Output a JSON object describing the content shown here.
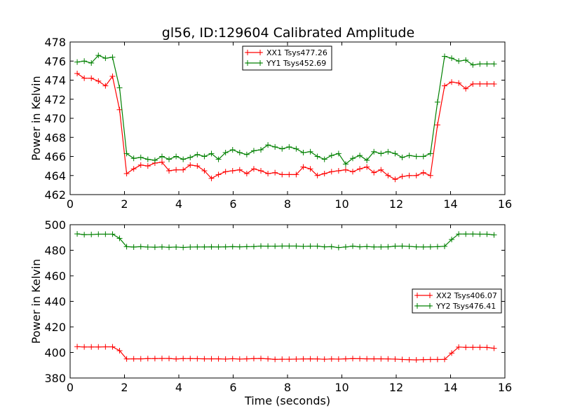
{
  "title": "gl56, ID:129604 Calibrated Amplitude",
  "chart_data": [
    {
      "type": "line",
      "ylabel": "Power in Kelvin",
      "xlabel": "",
      "xlim": [
        0,
        16
      ],
      "ylim": [
        462,
        478
      ],
      "xticks": [
        "0",
        "2",
        "4",
        "6",
        "8",
        "10",
        "12",
        "14",
        "16"
      ],
      "yticks": [
        "462",
        "464",
        "466",
        "468",
        "470",
        "472",
        "474",
        "476",
        "478"
      ],
      "grid": false,
      "legend_position": "top-center",
      "x": [
        0.26,
        0.52,
        0.78,
        1.04,
        1.3,
        1.56,
        1.82,
        2.08,
        2.34,
        2.6,
        2.86,
        3.12,
        3.38,
        3.64,
        3.9,
        4.16,
        4.42,
        4.68,
        4.94,
        5.2,
        5.46,
        5.72,
        5.98,
        6.24,
        6.5,
        6.76,
        7.02,
        7.28,
        7.54,
        7.8,
        8.06,
        8.32,
        8.58,
        8.84,
        9.1,
        9.36,
        9.62,
        9.88,
        10.14,
        10.4,
        10.66,
        10.92,
        11.18,
        11.44,
        11.7,
        11.96,
        12.22,
        12.48,
        12.74,
        13.0,
        13.26,
        13.52,
        13.78,
        14.04,
        14.3,
        14.56,
        14.82,
        15.08,
        15.34,
        15.6
      ],
      "series": [
        {
          "name": "XX1 Tsys477.26",
          "color": "#ff0000",
          "values": [
            474.7,
            474.2,
            474.2,
            473.9,
            473.4,
            474.4,
            470.9,
            464.2,
            464.7,
            465.1,
            465.0,
            465.3,
            465.4,
            464.5,
            464.6,
            464.6,
            465.1,
            465.0,
            464.5,
            463.7,
            464.1,
            464.4,
            464.5,
            464.6,
            464.2,
            464.7,
            464.5,
            464.2,
            464.3,
            464.1,
            464.1,
            464.1,
            464.9,
            464.7,
            464.0,
            464.2,
            464.4,
            464.5,
            464.6,
            464.4,
            464.7,
            464.9,
            464.3,
            464.6,
            464.0,
            463.6,
            463.9,
            464.0,
            464.0,
            464.3,
            464.0,
            469.3,
            473.4,
            473.8,
            473.7,
            473.1,
            473.6,
            473.6,
            473.6,
            473.6
          ]
        },
        {
          "name": "YY1 Tsys452.69",
          "color": "#008000",
          "values": [
            475.9,
            476.0,
            475.8,
            476.6,
            476.3,
            476.4,
            473.2,
            466.3,
            465.8,
            465.9,
            465.7,
            465.6,
            466.0,
            465.7,
            466.0,
            465.7,
            465.9,
            466.2,
            466.0,
            466.3,
            465.7,
            466.4,
            466.7,
            466.4,
            466.2,
            466.6,
            466.7,
            467.2,
            467.0,
            466.8,
            467.0,
            466.8,
            466.4,
            466.5,
            466.0,
            465.7,
            466.1,
            466.3,
            465.2,
            465.8,
            466.1,
            465.6,
            466.5,
            466.3,
            466.5,
            466.3,
            465.9,
            466.1,
            466.0,
            466.0,
            466.3,
            471.7,
            476.5,
            476.3,
            476.0,
            476.1,
            475.6,
            475.7,
            475.7,
            475.7
          ]
        }
      ]
    },
    {
      "type": "line",
      "ylabel": "Power in Kelvin",
      "xlabel": "Time (seconds)",
      "xlim": [
        0,
        16
      ],
      "ylim": [
        380,
        500
      ],
      "xticks": [
        "0",
        "2",
        "4",
        "6",
        "8",
        "10",
        "12",
        "14",
        "16"
      ],
      "yticks": [
        "380",
        "400",
        "420",
        "440",
        "460",
        "480",
        "500"
      ],
      "grid": false,
      "legend_position": "center-right",
      "x": [
        0.26,
        0.52,
        0.78,
        1.04,
        1.3,
        1.56,
        1.82,
        2.08,
        2.34,
        2.6,
        2.86,
        3.12,
        3.38,
        3.64,
        3.9,
        4.16,
        4.42,
        4.68,
        4.94,
        5.2,
        5.46,
        5.72,
        5.98,
        6.24,
        6.5,
        6.76,
        7.02,
        7.28,
        7.54,
        7.8,
        8.06,
        8.32,
        8.58,
        8.84,
        9.1,
        9.36,
        9.62,
        9.88,
        10.14,
        10.4,
        10.66,
        10.92,
        11.18,
        11.44,
        11.7,
        11.96,
        12.22,
        12.48,
        12.74,
        13.0,
        13.26,
        13.52,
        13.78,
        14.04,
        14.3,
        14.56,
        14.82,
        15.08,
        15.34,
        15.6
      ],
      "series": [
        {
          "name": "XX2 Tsys406.07",
          "color": "#ff0000",
          "values": [
            404.5,
            404.3,
            404.3,
            404.3,
            404.4,
            404.4,
            401.4,
            394.9,
            395.0,
            395.0,
            395.2,
            395.2,
            395.3,
            395.3,
            394.9,
            395.2,
            395.2,
            395.1,
            395.0,
            395.0,
            395.0,
            394.8,
            395.1,
            394.8,
            395.0,
            395.2,
            395.3,
            395.0,
            394.6,
            394.7,
            394.7,
            394.8,
            394.9,
            395.0,
            394.9,
            394.7,
            394.9,
            394.8,
            395.0,
            395.2,
            395.1,
            395.0,
            395.0,
            395.0,
            394.9,
            394.8,
            394.5,
            394.3,
            394.2,
            394.4,
            394.5,
            394.5,
            394.6,
            399.5,
            404.2,
            404.0,
            404.0,
            404.0,
            403.9,
            403.3
          ]
        },
        {
          "name": "YY2 Tsys476.41",
          "color": "#008000",
          "values": [
            492.8,
            492.2,
            492.3,
            492.6,
            492.6,
            492.6,
            489.3,
            482.8,
            482.5,
            482.8,
            482.5,
            482.4,
            482.6,
            482.3,
            482.5,
            482.2,
            482.5,
            482.6,
            482.6,
            482.7,
            482.6,
            482.7,
            482.8,
            482.7,
            482.8,
            482.9,
            483.3,
            483.2,
            483.2,
            483.3,
            483.3,
            483.3,
            483.0,
            483.2,
            483.2,
            482.7,
            482.8,
            482.1,
            482.6,
            483.2,
            482.7,
            482.9,
            482.6,
            482.6,
            482.7,
            483.2,
            483.3,
            483.0,
            482.7,
            482.6,
            482.7,
            482.8,
            483.1,
            488.4,
            492.7,
            492.7,
            492.7,
            492.6,
            492.6,
            492.0
          ]
        }
      ]
    }
  ]
}
